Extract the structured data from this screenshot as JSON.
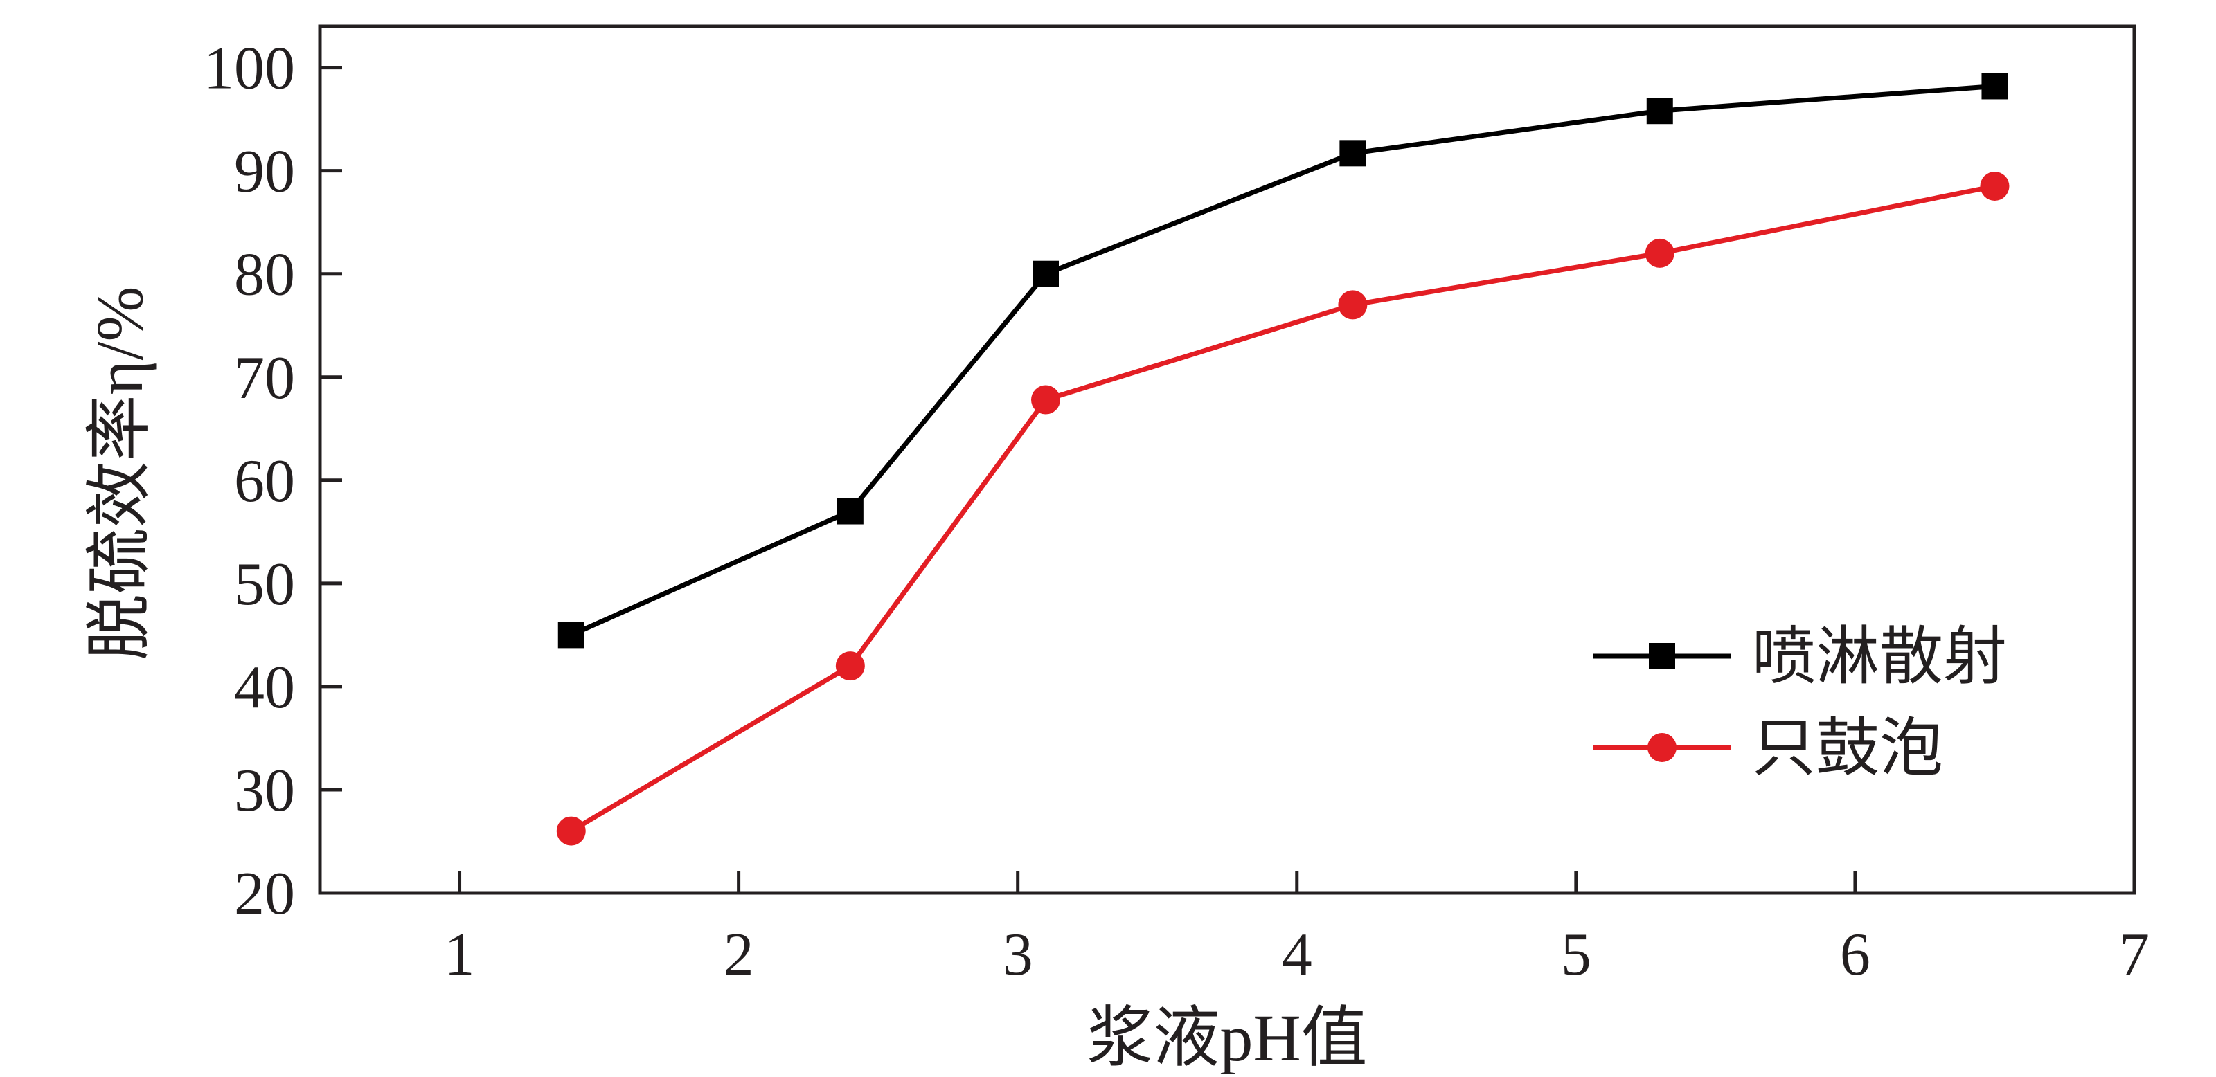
{
  "chart_data": {
    "type": "line",
    "title": "",
    "xlabel": "浆液pH值",
    "ylabel": "脱硫效率η/%",
    "xlim": [
      0.5,
      7
    ],
    "ylim": [
      20,
      104
    ],
    "xticks": [
      1,
      2,
      3,
      4,
      5,
      6,
      7
    ],
    "yticks": [
      20,
      30,
      40,
      50,
      60,
      70,
      80,
      90,
      100
    ],
    "xtick_labels": [
      "1",
      "2",
      "3",
      "4",
      "5",
      "6",
      "7"
    ],
    "ytick_labels": [
      "20",
      "30",
      "40",
      "50",
      "60",
      "70",
      "80",
      "90",
      "100"
    ],
    "grid": false,
    "legend_position": "lower-right",
    "series": [
      {
        "name": "喷淋散射",
        "color": "#000000",
        "marker": "square",
        "x": [
          1.4,
          2.4,
          3.1,
          4.2,
          5.3,
          6.5
        ],
        "y": [
          45,
          57,
          80,
          91.7,
          95.8,
          98.2
        ]
      },
      {
        "name": "只鼓泡",
        "color": "#e31e24",
        "marker": "circle",
        "x": [
          1.4,
          2.4,
          3.1,
          4.2,
          5.3,
          6.5
        ],
        "y": [
          26,
          42,
          67.8,
          77,
          82,
          88.5
        ]
      }
    ]
  }
}
